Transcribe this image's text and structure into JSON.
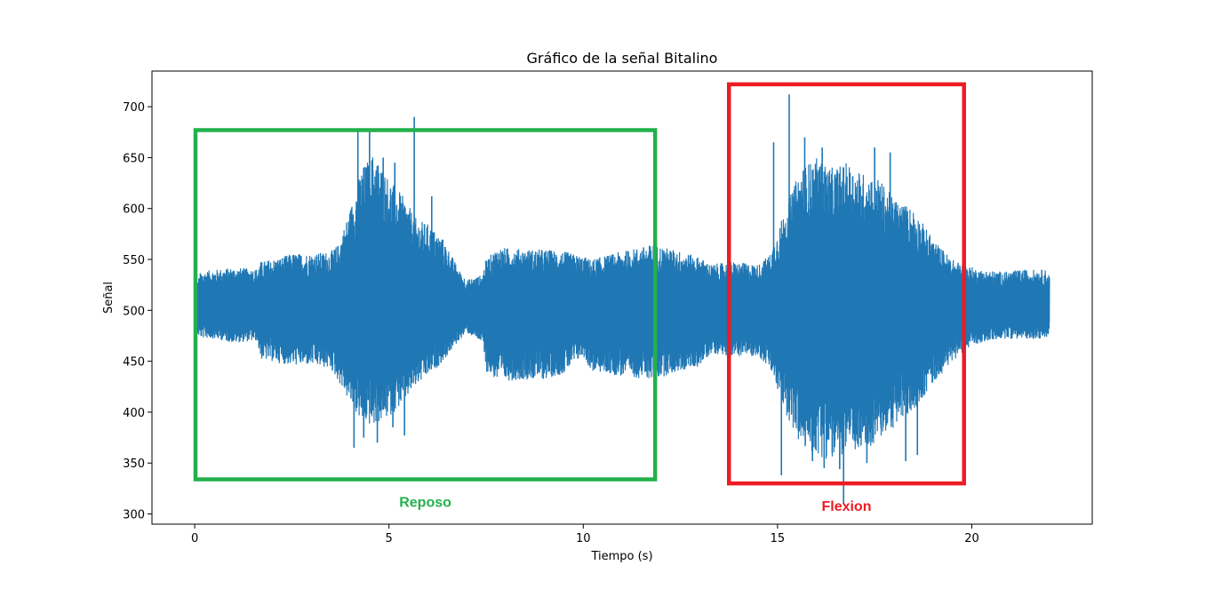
{
  "chart_data": {
    "type": "line",
    "title": "Gráfico de la señal Bitalino",
    "xlabel": "Tiempo (s)",
    "ylabel": "Señal",
    "xlim": [
      -1.1,
      23.1
    ],
    "ylim": [
      290,
      735
    ],
    "xticks": [
      0,
      5,
      10,
      15,
      20
    ],
    "yticks": [
      300,
      350,
      400,
      450,
      500,
      550,
      600,
      650,
      700
    ],
    "grid": false,
    "line_color": "#1f77b4",
    "baseline": 503,
    "envelope": {
      "x": [
        0.0,
        0.15,
        0.5,
        1.0,
        1.6,
        1.7,
        2.2,
        2.5,
        3.0,
        3.5,
        3.7,
        4.0,
        4.3,
        4.6,
        5.0,
        5.4,
        5.7,
        6.0,
        6.4,
        6.8,
        7.0,
        7.4,
        7.5,
        7.8,
        8.5,
        9.0,
        9.5,
        10.0,
        10.2,
        11.0,
        11.8,
        12.5,
        13.0,
        13.3,
        13.8,
        14.5,
        14.8,
        15.2,
        15.6,
        16.0,
        16.4,
        16.8,
        17.2,
        17.6,
        18.0,
        18.5,
        19.0,
        19.5,
        19.8,
        20.2,
        20.8,
        21.3,
        21.9,
        22.0
      ],
      "upper": [
        520,
        538,
        540,
        542,
        541,
        548,
        552,
        556,
        556,
        558,
        565,
        600,
        640,
        655,
        630,
        610,
        590,
        585,
        570,
        540,
        530,
        535,
        550,
        562,
        560,
        560,
        558,
        553,
        550,
        558,
        565,
        558,
        552,
        545,
        548,
        545,
        555,
        600,
        640,
        650,
        640,
        645,
        635,
        630,
        610,
        600,
        570,
        550,
        545,
        540,
        538,
        540,
        540,
        535
      ],
      "lower": [
        478,
        473,
        472,
        468,
        470,
        452,
        448,
        446,
        446,
        442,
        430,
        408,
        390,
        385,
        395,
        410,
        425,
        435,
        450,
        470,
        478,
        468,
        440,
        430,
        432,
        432,
        438,
        455,
        440,
        435,
        432,
        440,
        445,
        458,
        455,
        455,
        442,
        400,
        365,
        358,
        352,
        360,
        360,
        372,
        385,
        400,
        428,
        450,
        460,
        468,
        472,
        472,
        472,
        478
      ]
    },
    "spikes": [
      {
        "x": 4.2,
        "y": 677
      },
      {
        "x": 4.5,
        "y": 677
      },
      {
        "x": 4.85,
        "y": 650
      },
      {
        "x": 5.15,
        "y": 645
      },
      {
        "x": 5.65,
        "y": 690
      },
      {
        "x": 6.1,
        "y": 612
      },
      {
        "x": 4.35,
        "y": 375
      },
      {
        "x": 4.1,
        "y": 365
      },
      {
        "x": 4.7,
        "y": 370
      },
      {
        "x": 5.4,
        "y": 377
      },
      {
        "x": 5.1,
        "y": 385
      },
      {
        "x": 14.9,
        "y": 665
      },
      {
        "x": 15.3,
        "y": 712
      },
      {
        "x": 15.7,
        "y": 670
      },
      {
        "x": 16.15,
        "y": 660
      },
      {
        "x": 17.5,
        "y": 660
      },
      {
        "x": 17.9,
        "y": 655
      },
      {
        "x": 15.1,
        "y": 338
      },
      {
        "x": 15.9,
        "y": 352
      },
      {
        "x": 16.2,
        "y": 345
      },
      {
        "x": 16.6,
        "y": 344
      },
      {
        "x": 16.7,
        "y": 310
      },
      {
        "x": 17.3,
        "y": 350
      },
      {
        "x": 18.3,
        "y": 352
      },
      {
        "x": 18.6,
        "y": 358
      }
    ],
    "annotations": [
      {
        "label": "Reposo",
        "color": "#22b14c",
        "x0": 0.02,
        "x1": 11.85,
        "y0": 334,
        "y1": 677
      },
      {
        "label": "Flexion",
        "color": "#ed1c24",
        "x0": 13.75,
        "x1": 19.8,
        "y0": 330,
        "y1": 722
      }
    ]
  }
}
